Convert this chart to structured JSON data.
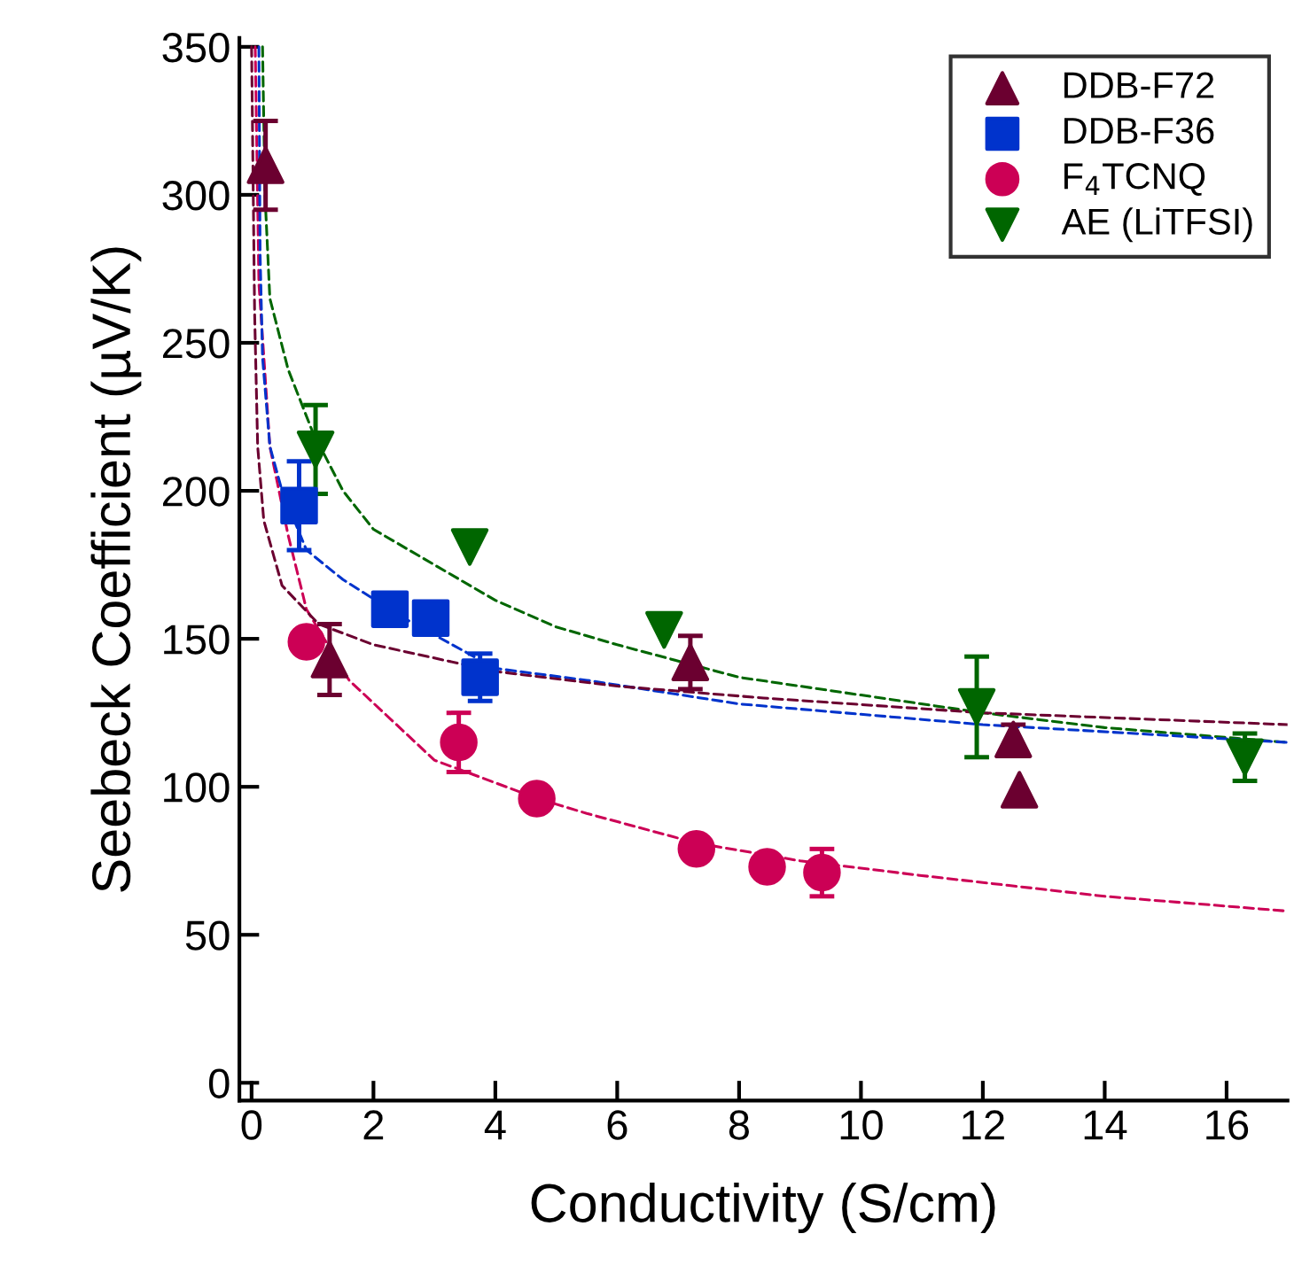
{
  "chart_data": {
    "type": "scatter",
    "xlabel": "Conductivity (S/cm)",
    "ylabel": "Seebeck Coefficient (µV/K)",
    "xlim": [
      -0.2,
      17
    ],
    "ylim": [
      -6,
      353
    ],
    "xticks": [
      0,
      2,
      4,
      6,
      8,
      10,
      12,
      14,
      16
    ],
    "yticks": [
      0,
      50,
      100,
      150,
      200,
      250,
      300,
      350
    ],
    "grid": false,
    "legend": "top right",
    "series": [
      {
        "type": "line",
        "line_style": "dashed",
        "marker": "none",
        "color": "#6b0030",
        "x": [
          0.0,
          0.05,
          0.1,
          0.2,
          0.5,
          1.1,
          2,
          4,
          6,
          8.4,
          12,
          17
        ],
        "values": [
          350,
          260,
          215,
          190,
          168,
          155,
          148,
          139,
          134,
          130,
          125,
          121
        ]
      },
      {
        "type": "line",
        "line_style": "dashed",
        "marker": "none",
        "color": "#0033cc",
        "x": [
          0.12,
          0.14,
          0.18,
          0.3,
          0.5,
          0.9,
          1.5,
          2.5,
          4,
          5.5,
          8,
          12,
          17
        ],
        "values": [
          350,
          280,
          245,
          215,
          200,
          180,
          170,
          157,
          140,
          136,
          128,
          121,
          115
        ]
      },
      {
        "type": "line",
        "line_style": "dashed",
        "marker": "none",
        "color": "#cc0055",
        "x": [
          0.06,
          0.12,
          0.3,
          0.6,
          0.9,
          1.6,
          3,
          4.7,
          5.5,
          7.3,
          9,
          11,
          14,
          17
        ],
        "values": [
          350,
          270,
          215,
          185,
          160,
          136,
          109,
          96,
          91,
          81,
          75,
          70,
          63,
          58
        ]
      },
      {
        "type": "line",
        "line_style": "dashed",
        "marker": "none",
        "color": "#006600",
        "x": [
          0.18,
          0.22,
          0.3,
          0.6,
          1,
          1.5,
          2,
          3,
          4,
          5,
          6,
          8,
          10,
          12,
          14,
          17
        ],
        "values": [
          350,
          300,
          265,
          241,
          220,
          200,
          187,
          175,
          163,
          154,
          148,
          137,
          131,
          125,
          120,
          115
        ]
      },
      {
        "name": "DDB-F72",
        "marker": "triangle",
        "color": "#6b0030",
        "x": [
          0.23,
          1.28,
          7.2,
          12.5,
          12.6
        ],
        "values": [
          310,
          143,
          142,
          116,
          99
        ],
        "errors": [
          15,
          12,
          9,
          5,
          null
        ]
      },
      {
        "name": "DDB-F36",
        "marker": "square",
        "color": "#0033cc",
        "x": [
          0.78,
          2.27,
          2.94,
          3.75
        ],
        "values": [
          195,
          160,
          157,
          137
        ],
        "errors": [
          15,
          null,
          null,
          8
        ]
      },
      {
        "name": "F$_{4}$TCNQ",
        "marker": "circle",
        "color": "#cc0055",
        "x": [
          0.9,
          3.4,
          4.68,
          7.3,
          8.46,
          9.36
        ],
        "values": [
          149,
          115,
          96,
          79,
          73,
          71
        ],
        "errors": [
          null,
          10,
          null,
          null,
          null,
          8
        ]
      },
      {
        "name": "AE (LiTFSI)",
        "marker": "triangle_down",
        "color": "#006600",
        "x": [
          1.05,
          3.58,
          6.77,
          11.9,
          16.3
        ],
        "values": [
          214,
          181,
          153,
          127,
          110
        ],
        "errors": [
          15,
          null,
          null,
          17,
          8
        ]
      }
    ]
  }
}
